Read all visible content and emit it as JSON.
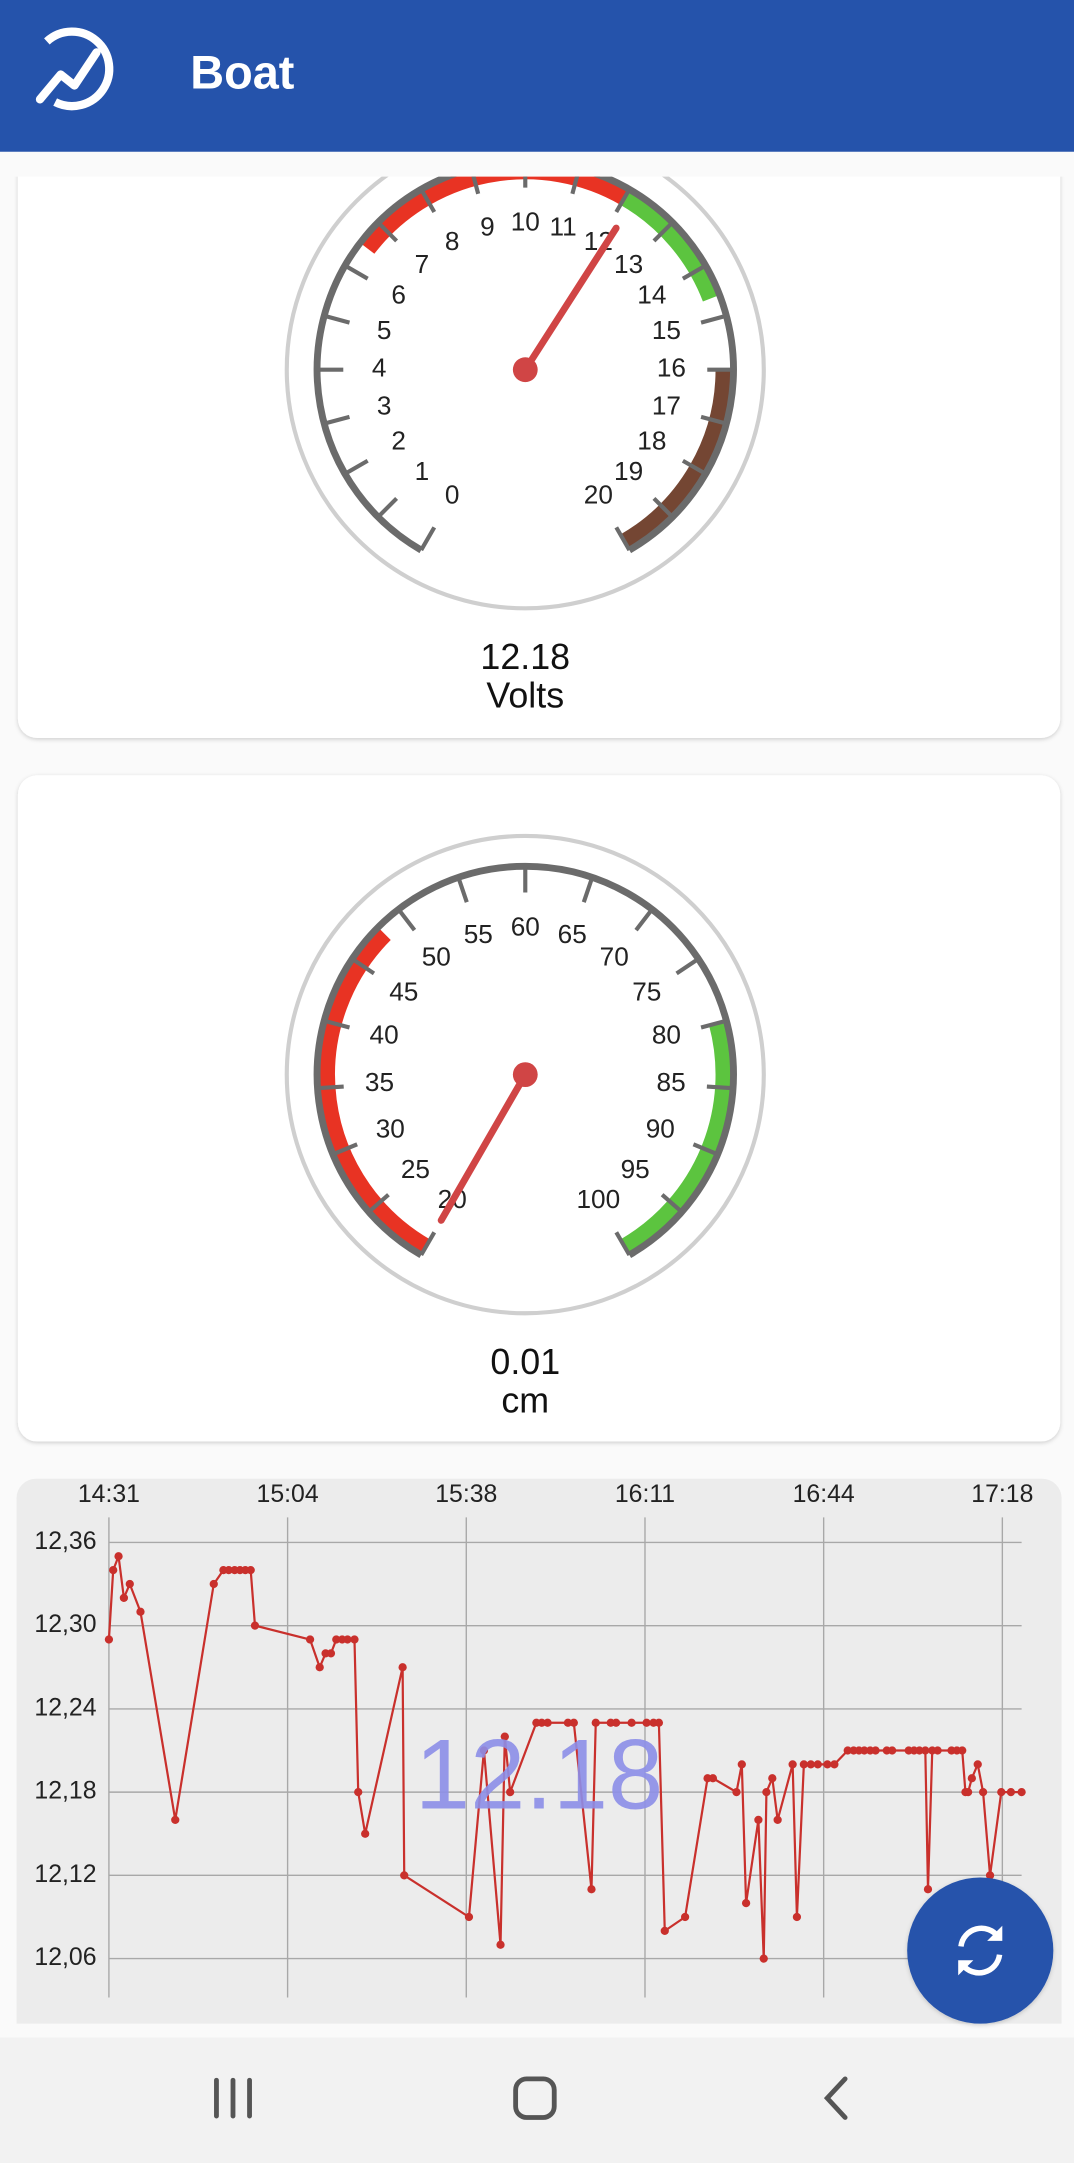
{
  "app_bar": {
    "title": "Boat"
  },
  "gauges": [
    {
      "ticks": [
        0,
        1,
        2,
        3,
        4,
        5,
        6,
        7,
        8,
        9,
        10,
        11,
        12,
        13,
        14,
        15,
        16,
        17,
        18,
        19,
        20
      ],
      "bands": [
        {
          "from": 6.5,
          "to": 12,
          "color": "#e83323"
        },
        {
          "from": 12,
          "to": 14.6,
          "color": "#5cc43f"
        },
        {
          "from": 16,
          "to": 20,
          "color": "#744633"
        }
      ],
      "value": 12.18,
      "unit": "Volts"
    },
    {
      "ticks": [
        20,
        25,
        30,
        35,
        40,
        45,
        50,
        55,
        60,
        65,
        70,
        75,
        80,
        85,
        90,
        95,
        100
      ],
      "bands": [
        {
          "from": 20,
          "to": 48,
          "color": "#e83323"
        },
        {
          "from": 80,
          "to": 100,
          "color": "#5cc43f"
        }
      ],
      "value": 0.01,
      "unit": "cm"
    }
  ],
  "history_chart": {
    "type": "line",
    "overlay_text": "12.18",
    "xlim": [
      871,
      1041.6
    ],
    "xticks": [
      {
        "value": 871,
        "label": "14:31"
      },
      {
        "value": 904.4,
        "label": "15:04"
      },
      {
        "value": 937.8,
        "label": "15:38"
      },
      {
        "value": 971.2,
        "label": "16:11"
      },
      {
        "value": 1004.6,
        "label": "16:44"
      },
      {
        "value": 1038,
        "label": "17:18"
      }
    ],
    "ylim": [
      12.032,
      12.378
    ],
    "yticks": [
      {
        "value": 12.36,
        "label": "12,36"
      },
      {
        "value": 12.3,
        "label": "12,30"
      },
      {
        "value": 12.24,
        "label": "12,24"
      },
      {
        "value": 12.18,
        "label": "12,18"
      },
      {
        "value": 12.12,
        "label": "12,12"
      },
      {
        "value": 12.06,
        "label": "12,06"
      }
    ],
    "grid": true,
    "x": [
      871,
      871.8,
      872.8,
      873.8,
      874.9,
      876.9,
      883.4,
      890.6,
      892.4,
      893.4,
      894.5,
      895.5,
      896.5,
      897.5,
      898.3,
      908.6,
      910.4,
      911.5,
      912.5,
      913.5,
      914.6,
      915.6,
      916.9,
      917.6,
      918.9,
      925.9,
      926.2,
      938.3,
      941.1,
      944.2,
      945,
      946,
      950.9,
      951.9,
      953,
      956.8,
      957.9,
      961.2,
      962,
      964.8,
      965.8,
      968.7,
      971.5,
      972.8,
      973.8,
      974.9,
      978.7,
      982.9,
      983.9,
      988.3,
      989.3,
      990.1,
      992.4,
      993.4,
      993.9,
      995,
      996,
      998.8,
      999.6,
      1000.9,
      1002.2,
      1003.5,
      1005.3,
      1006.6,
      1009.1,
      1010.2,
      1011.2,
      1012.2,
      1013.3,
      1014.3,
      1016.4,
      1017.4,
      1020.5,
      1021.5,
      1022.5,
      1023.6,
      1024.1,
      1024.9,
      1025.9,
      1028.5,
      1029.5,
      1030.5,
      1031.1,
      1031.6,
      1032.3,
      1033.4,
      1034.4,
      1035.7,
      1037.8,
      1039.6,
      1041.6
    ],
    "series": [
      {
        "color": "#c9302c",
        "values": [
          12.29,
          12.34,
          12.35,
          12.32,
          12.33,
          12.31,
          12.16,
          12.33,
          12.34,
          12.34,
          12.34,
          12.34,
          12.34,
          12.34,
          12.3,
          12.29,
          12.27,
          12.28,
          12.28,
          12.29,
          12.29,
          12.29,
          12.29,
          12.18,
          12.15,
          12.27,
          12.12,
          12.09,
          12.21,
          12.07,
          12.22,
          12.18,
          12.23,
          12.23,
          12.23,
          12.23,
          12.23,
          12.11,
          12.23,
          12.23,
          12.23,
          12.23,
          12.23,
          12.23,
          12.23,
          12.08,
          12.09,
          12.19,
          12.19,
          12.18,
          12.2,
          12.1,
          12.16,
          12.06,
          12.18,
          12.19,
          12.16,
          12.2,
          12.09,
          12.2,
          12.2,
          12.2,
          12.2,
          12.2,
          12.21,
          12.21,
          12.21,
          12.21,
          12.21,
          12.21,
          12.21,
          12.21,
          12.21,
          12.21,
          12.21,
          12.21,
          12.11,
          12.21,
          12.21,
          12.21,
          12.21,
          12.21,
          12.18,
          12.18,
          12.19,
          12.2,
          12.18,
          12.12,
          12.18,
          12.18,
          12.18
        ]
      }
    ]
  }
}
